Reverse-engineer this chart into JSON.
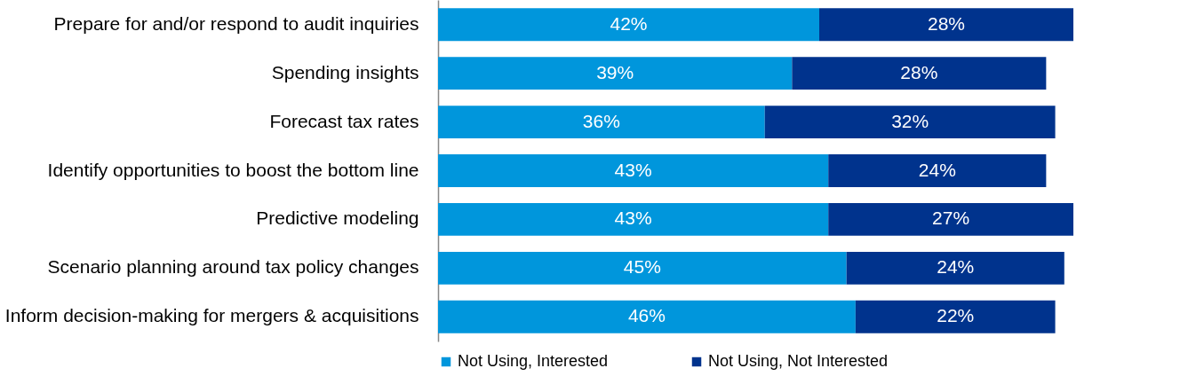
{
  "chart_data": {
    "type": "bar",
    "orientation": "horizontal",
    "stacked": true,
    "legend": "bottom",
    "categories": [
      "Prepare for and/or respond to audit inquiries",
      "Spending insights",
      "Forecast tax rates",
      "Identify opportunities to boost the bottom line",
      "Predictive modeling",
      "Scenario planning around tax policy changes",
      "Inform decision-making for mergers & acquisitions"
    ],
    "series": [
      {
        "name": "Not Using, Interested",
        "color": "#0096dc",
        "values": [
          42,
          39,
          36,
          43,
          43,
          45,
          46
        ],
        "value_labels": [
          "42%",
          "39%",
          "36%",
          "43%",
          "43%",
          "45%",
          "46%"
        ]
      },
      {
        "name": "Not Using, Not Interested",
        "color": "#00338d",
        "values": [
          28,
          28,
          32,
          24,
          27,
          24,
          22
        ],
        "value_labels": [
          "28%",
          "28%",
          "32%",
          "24%",
          "27%",
          "24%",
          "22%"
        ]
      }
    ]
  }
}
